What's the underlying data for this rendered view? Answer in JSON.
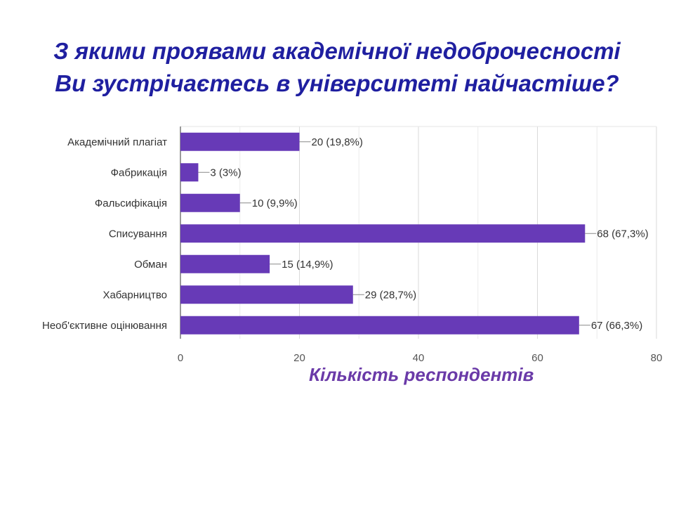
{
  "slide": {
    "title_line1": "З якими проявами академічної недоброчесності",
    "title_line2": "Ви зустрічаєтесь в університеті найчастіше?"
  },
  "chart_data": {
    "type": "bar",
    "orientation": "horizontal",
    "categories": [
      "Академічний плагіат",
      "Фабрикація",
      "Фальсифікація",
      "Списування",
      "Обман",
      "Хабарництво",
      "Необ'єктивне оцінювання"
    ],
    "values": [
      20,
      3,
      10,
      68,
      15,
      29,
      67
    ],
    "data_labels": [
      "20 (19,8%)",
      "3 (3%)",
      "10 (9,9%)",
      "68 (67,3%)",
      "15 (14,9%)",
      "29 (28,7%)",
      "67 (66,3%)"
    ],
    "xlabel": "Кількість респондентів",
    "xlim": [
      0,
      80
    ],
    "xticks": [
      0,
      20,
      40,
      60,
      80
    ],
    "grid": true,
    "bar_color": "#673ab7"
  }
}
